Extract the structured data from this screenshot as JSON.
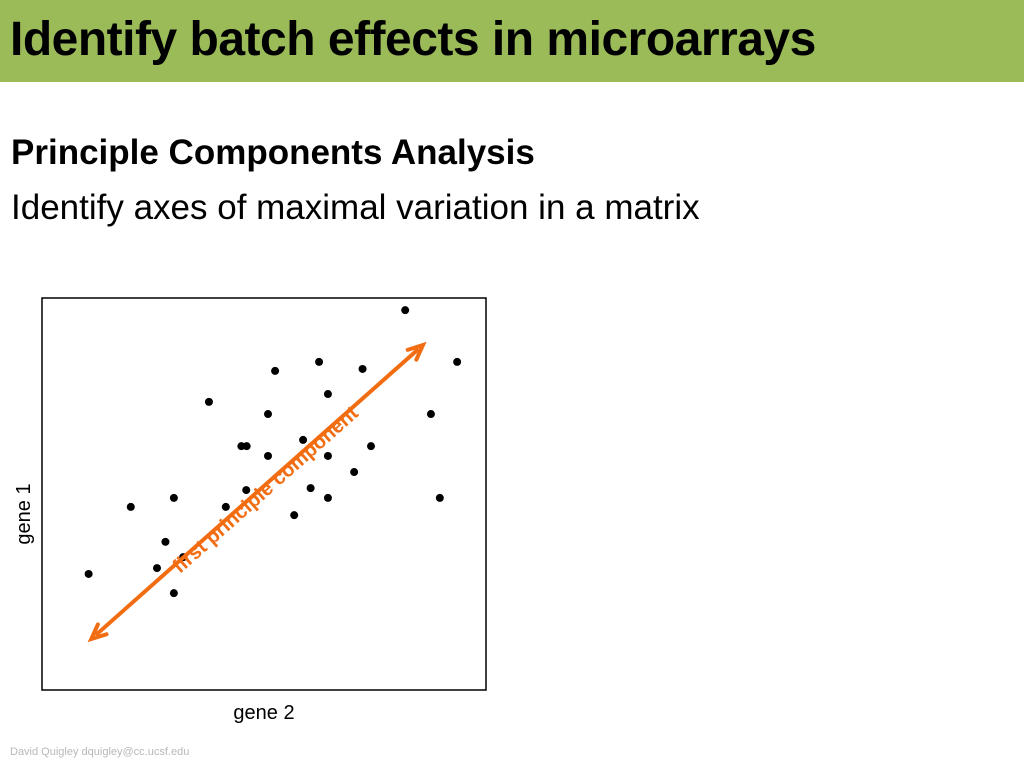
{
  "slide": {
    "title": "Identify batch effects in microarrays",
    "heading": "Principle Components Analysis",
    "subheading": "Identify axes of maximal variation in a matrix",
    "footer": "David Quigley dquigley@cc.ucsf.edu"
  },
  "colors": {
    "title_bar": "#9bbb59",
    "arrow": "#f26c12",
    "points": "#000000",
    "footer": "#b8b8b8"
  },
  "chart_data": {
    "type": "scatter",
    "xlabel": "gene 2",
    "ylabel": "gene 1",
    "axis_ticks": false,
    "grid": false,
    "xlim": [
      0,
      100
    ],
    "ylim": [
      0,
      100
    ],
    "points": [
      {
        "x": 10.5,
        "y": 29.6
      },
      {
        "x": 20.0,
        "y": 46.7
      },
      {
        "x": 25.9,
        "y": 31.1
      },
      {
        "x": 27.8,
        "y": 37.8
      },
      {
        "x": 29.7,
        "y": 24.7
      },
      {
        "x": 29.7,
        "y": 49.0
      },
      {
        "x": 31.8,
        "y": 33.9
      },
      {
        "x": 37.6,
        "y": 73.5
      },
      {
        "x": 41.4,
        "y": 46.7
      },
      {
        "x": 44.9,
        "y": 62.2
      },
      {
        "x": 46.1,
        "y": 62.2
      },
      {
        "x": 46.0,
        "y": 51.0
      },
      {
        "x": 50.9,
        "y": 70.4
      },
      {
        "x": 50.9,
        "y": 59.7
      },
      {
        "x": 52.5,
        "y": 81.4
      },
      {
        "x": 56.8,
        "y": 44.6
      },
      {
        "x": 58.8,
        "y": 63.8
      },
      {
        "x": 60.5,
        "y": 51.5
      },
      {
        "x": 62.4,
        "y": 83.7
      },
      {
        "x": 64.4,
        "y": 75.5
      },
      {
        "x": 64.4,
        "y": 59.7
      },
      {
        "x": 64.4,
        "y": 49.0
      },
      {
        "x": 70.3,
        "y": 55.6
      },
      {
        "x": 72.2,
        "y": 81.9
      },
      {
        "x": 74.1,
        "y": 62.2
      },
      {
        "x": 81.8,
        "y": 96.9
      },
      {
        "x": 87.6,
        "y": 70.4
      },
      {
        "x": 89.6,
        "y": 49.0
      },
      {
        "x": 93.5,
        "y": 83.7
      }
    ],
    "annotation": {
      "label": "first principle component",
      "kind": "double-headed arrow",
      "color": "#f26c12",
      "from": {
        "x": 11.1,
        "y": 13.0
      },
      "to": {
        "x": 85.8,
        "y": 88.0
      }
    }
  }
}
